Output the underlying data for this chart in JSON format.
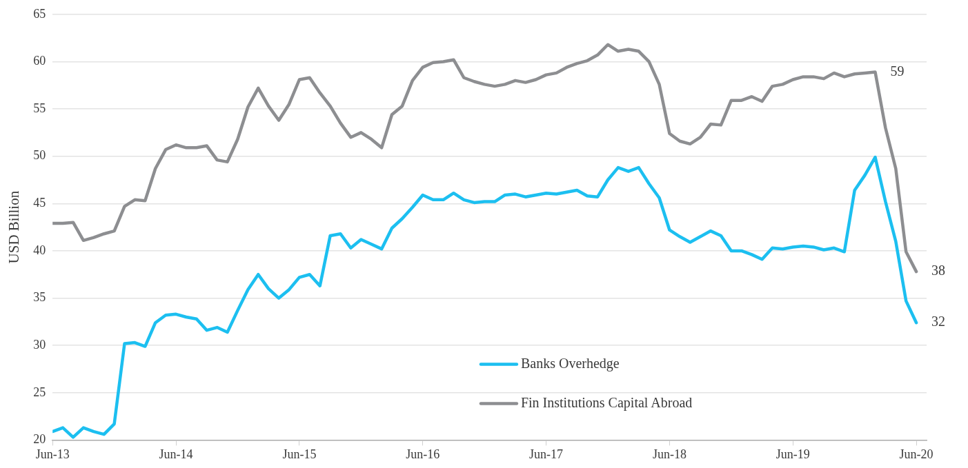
{
  "chart_data": {
    "type": "line",
    "ylabel": "USD Billion",
    "x": [
      "2013-06",
      "2013-07",
      "2013-08",
      "2013-09",
      "2013-10",
      "2013-11",
      "2013-12",
      "2014-01",
      "2014-02",
      "2014-03",
      "2014-04",
      "2014-05",
      "2014-06",
      "2014-07",
      "2014-08",
      "2014-09",
      "2014-10",
      "2014-11",
      "2014-12",
      "2015-01",
      "2015-02",
      "2015-03",
      "2015-04",
      "2015-05",
      "2015-06",
      "2015-07",
      "2015-08",
      "2015-09",
      "2015-10",
      "2015-11",
      "2015-12",
      "2016-01",
      "2016-02",
      "2016-03",
      "2016-04",
      "2016-05",
      "2016-06",
      "2016-07",
      "2016-08",
      "2016-09",
      "2016-10",
      "2016-11",
      "2016-12",
      "2017-01",
      "2017-02",
      "2017-03",
      "2017-04",
      "2017-05",
      "2017-06",
      "2017-07",
      "2017-08",
      "2017-09",
      "2017-10",
      "2017-11",
      "2017-12",
      "2018-01",
      "2018-02",
      "2018-03",
      "2018-04",
      "2018-05",
      "2018-06",
      "2018-07",
      "2018-08",
      "2018-09",
      "2018-10",
      "2018-11",
      "2018-12",
      "2019-01",
      "2019-02",
      "2019-03",
      "2019-04",
      "2019-05",
      "2019-06",
      "2019-07",
      "2019-08",
      "2019-09",
      "2019-10",
      "2019-11",
      "2019-12",
      "2020-01",
      "2020-02",
      "2020-03",
      "2020-04",
      "2020-05",
      "2020-06"
    ],
    "series": [
      {
        "name": "Banks Overhedge",
        "color": "#1cbff0",
        "values": [
          20.9,
          21.3,
          20.3,
          21.3,
          20.9,
          20.6,
          21.7,
          30.2,
          30.3,
          29.9,
          32.4,
          33.2,
          33.3,
          33.0,
          32.8,
          31.6,
          31.9,
          31.4,
          33.7,
          35.9,
          37.5,
          36.0,
          35.0,
          35.9,
          37.2,
          37.5,
          36.3,
          41.6,
          41.8,
          40.3,
          41.2,
          40.7,
          40.2,
          42.4,
          43.4,
          44.6,
          45.9,
          45.4,
          45.4,
          46.1,
          45.4,
          45.1,
          45.2,
          45.2,
          45.9,
          46.0,
          45.7,
          45.9,
          46.1,
          46.0,
          46.2,
          46.4,
          45.8,
          45.7,
          47.5,
          48.8,
          48.4,
          48.8,
          47.1,
          45.6,
          42.2,
          41.5,
          40.9,
          41.5,
          42.1,
          41.6,
          40.0,
          40.0,
          39.6,
          39.1,
          40.3,
          40.2,
          40.4,
          40.5,
          40.4,
          40.1,
          40.3,
          39.9,
          46.4,
          48.0,
          49.9,
          45.2,
          41.0,
          34.7,
          32.4
        ]
      },
      {
        "name": "Fin Institutions Capital Abroad",
        "color": "#8d8e91",
        "values": [
          42.9,
          42.9,
          43.0,
          41.1,
          41.4,
          41.8,
          42.1,
          44.7,
          45.4,
          45.3,
          48.7,
          50.7,
          51.2,
          50.9,
          50.9,
          51.1,
          49.6,
          49.4,
          51.8,
          55.2,
          57.2,
          55.3,
          53.8,
          55.5,
          58.1,
          58.3,
          56.7,
          55.3,
          53.5,
          52.0,
          52.5,
          51.8,
          50.9,
          54.4,
          55.3,
          58.0,
          59.4,
          59.9,
          60.0,
          60.2,
          58.3,
          57.9,
          57.6,
          57.4,
          57.6,
          58.0,
          57.8,
          58.1,
          58.6,
          58.8,
          59.4,
          59.8,
          60.1,
          60.7,
          61.8,
          61.1,
          61.3,
          61.1,
          60.0,
          57.6,
          52.4,
          51.6,
          51.3,
          52.0,
          53.4,
          53.3,
          55.9,
          55.9,
          56.3,
          55.8,
          57.4,
          57.6,
          58.1,
          58.4,
          58.4,
          58.2,
          58.8,
          58.4,
          58.7,
          58.8,
          58.9,
          53.0,
          48.7,
          39.9,
          37.8
        ]
      }
    ],
    "xlim": [
      "2013-06",
      "2020-07"
    ],
    "xticks": [
      {
        "value": "2013-06",
        "label": "Jun-13"
      },
      {
        "value": "2014-06",
        "label": "Jun-14"
      },
      {
        "value": "2015-06",
        "label": "Jun-15"
      },
      {
        "value": "2016-06",
        "label": "Jun-16"
      },
      {
        "value": "2017-06",
        "label": "Jun-17"
      },
      {
        "value": "2018-06",
        "label": "Jun-18"
      },
      {
        "value": "2019-06",
        "label": "Jun-19"
      },
      {
        "value": "2020-06",
        "label": "Jun-20"
      }
    ],
    "ylim": [
      20,
      65
    ],
    "yticks": [
      20,
      25,
      30,
      35,
      40,
      45,
      50,
      55,
      60,
      65
    ],
    "grid": "y",
    "legend": "bottom",
    "marker": "none",
    "line_style": "solid",
    "annotations": [
      {
        "text": "59",
        "x": "2020-02",
        "y": 58.9
      },
      {
        "text": "38",
        "x": "2020-06",
        "y": 37.8
      },
      {
        "text": "32",
        "x": "2020-06",
        "y": 32.4
      }
    ]
  }
}
